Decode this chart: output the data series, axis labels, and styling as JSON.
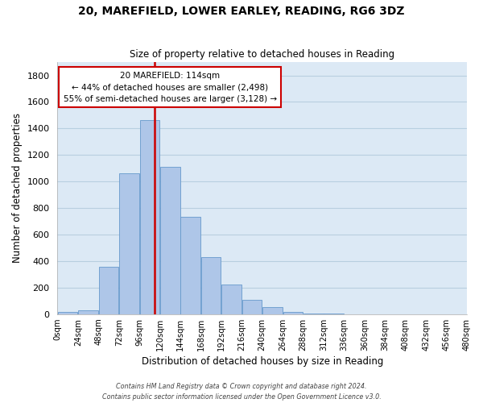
{
  "title": "20, MAREFIELD, LOWER EARLEY, READING, RG6 3DZ",
  "subtitle": "Size of property relative to detached houses in Reading",
  "xlabel": "Distribution of detached houses by size in Reading",
  "ylabel": "Number of detached properties",
  "bar_color": "#aec6e8",
  "bar_edge_color": "#6699cc",
  "bg_color": "#dce9f5",
  "fig_bg_color": "#ffffff",
  "grid_color": "#b8cfe0",
  "bin_starts": [
    0,
    24,
    48,
    72,
    96,
    120,
    144,
    168,
    192,
    216,
    240,
    264,
    288,
    312,
    336,
    360,
    384,
    408,
    432,
    456
  ],
  "bar_heights": [
    15,
    30,
    355,
    1060,
    1465,
    1110,
    735,
    430,
    225,
    110,
    55,
    20,
    5,
    2,
    1,
    0,
    0,
    0,
    0,
    0
  ],
  "tick_positions": [
    0,
    24,
    48,
    72,
    96,
    120,
    144,
    168,
    192,
    216,
    240,
    264,
    288,
    312,
    336,
    360,
    384,
    408,
    432,
    456,
    480
  ],
  "tick_labels": [
    "0sqm",
    "24sqm",
    "48sqm",
    "72sqm",
    "96sqm",
    "120sqm",
    "144sqm",
    "168sqm",
    "192sqm",
    "216sqm",
    "240sqm",
    "264sqm",
    "288sqm",
    "312sqm",
    "336sqm",
    "360sqm",
    "384sqm",
    "408sqm",
    "432sqm",
    "456sqm",
    "480sqm"
  ],
  "ylim": [
    0,
    1900
  ],
  "yticks": [
    0,
    200,
    400,
    600,
    800,
    1000,
    1200,
    1400,
    1600,
    1800
  ],
  "xlim": [
    0,
    480
  ],
  "vline_x": 114,
  "vline_color": "#cc0000",
  "annotation_title": "20 MAREFIELD: 114sqm",
  "annotation_line1": "← 44% of detached houses are smaller (2,498)",
  "annotation_line2": "55% of semi-detached houses are larger (3,128) →",
  "annotation_box_color": "#ffffff",
  "annotation_box_edge": "#cc0000",
  "footer_line1": "Contains HM Land Registry data © Crown copyright and database right 2024.",
  "footer_line2": "Contains public sector information licensed under the Open Government Licence v3.0."
}
